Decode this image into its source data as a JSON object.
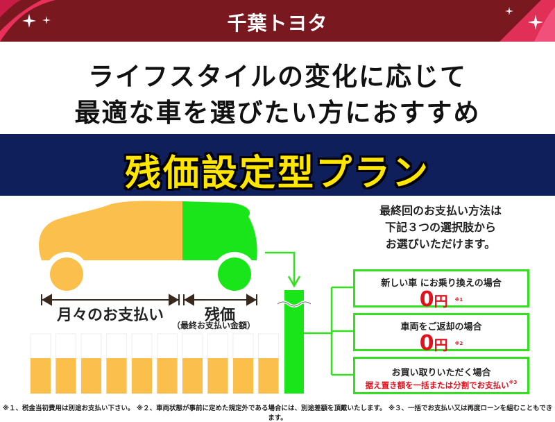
{
  "header": {
    "logo": "千葉トヨタ",
    "bg_color": "#7a1820"
  },
  "headline": {
    "line1": "ライフスタイルの変化に応じて",
    "line2": "最適な車を選びたい方におすすめ"
  },
  "banner": {
    "title": "残価設定型プラン",
    "bg_color": "#0f1f5c",
    "text_color": "#ffe600"
  },
  "diagram": {
    "monthly_label": "月々のお支払い",
    "residual_label": "残価",
    "residual_sub": "（最終お支払い金額）",
    "monthly_color": "#fbbf4c",
    "residual_color": "#19e619",
    "monthly_bars": 10
  },
  "options": {
    "intro": [
      "最終回のお支払い方法は",
      "下記３つの選択肢から",
      "お選びいただけます。"
    ],
    "items": [
      {
        "title": "新しい車 にお乗り換えの場合",
        "amount": "0",
        "unit": "円",
        "note": "※1"
      },
      {
        "title": "車両をご返却の場合",
        "amount": "0",
        "unit": "円",
        "note": "※2"
      },
      {
        "title": "お買い取りいただく場合",
        "detail": "据え置き額を一括または分割でお支払い",
        "note": "※3"
      }
    ]
  },
  "footnote": "※１、税金当初費用は別途お支払い下さい。 ※２、車両状態が事前に定めた規定外である場合には、別途差額を頂戴いたします。 ※３、一括でお支払い又は再度ローンを組むこともできます。"
}
